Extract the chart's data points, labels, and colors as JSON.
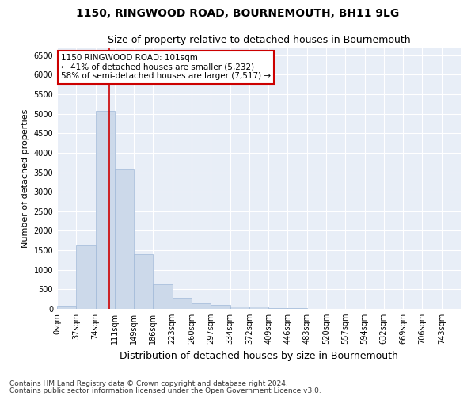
{
  "title": "1150, RINGWOOD ROAD, BOURNEMOUTH, BH11 9LG",
  "subtitle": "Size of property relative to detached houses in Bournemouth",
  "xlabel": "Distribution of detached houses by size in Bournemouth",
  "ylabel": "Number of detached properties",
  "bar_color": "#ccd9ea",
  "bar_edge_color": "#a0b8d8",
  "bin_labels": [
    "0sqm",
    "37sqm",
    "74sqm",
    "111sqm",
    "149sqm",
    "186sqm",
    "223sqm",
    "260sqm",
    "297sqm",
    "334sqm",
    "372sqm",
    "409sqm",
    "446sqm",
    "483sqm",
    "520sqm",
    "557sqm",
    "594sqm",
    "632sqm",
    "669sqm",
    "706sqm",
    "743sqm"
  ],
  "bar_values": [
    75,
    1650,
    5080,
    3580,
    1400,
    620,
    290,
    140,
    100,
    70,
    55,
    30,
    20,
    10,
    5,
    3,
    2,
    1,
    1,
    0,
    0
  ],
  "ylim": [
    0,
    6700
  ],
  "yticks": [
    0,
    500,
    1000,
    1500,
    2000,
    2500,
    3000,
    3500,
    4000,
    4500,
    5000,
    5500,
    6000,
    6500
  ],
  "vline_x": 2.73,
  "vline_color": "#cc0000",
  "annotation_line1": "1150 RINGWOOD ROAD: 101sqm",
  "annotation_line2": "← 41% of detached houses are smaller (5,232)",
  "annotation_line3": "58% of semi-detached houses are larger (7,517) →",
  "annotation_box_color": "#ffffff",
  "annotation_box_edge": "#cc0000",
  "footer1": "Contains HM Land Registry data © Crown copyright and database right 2024.",
  "footer2": "Contains public sector information licensed under the Open Government Licence v3.0.",
  "background_color": "#e8eef7",
  "grid_color": "#ffffff",
  "fig_bg": "#ffffff",
  "title_fontsize": 10,
  "subtitle_fontsize": 9,
  "xlabel_fontsize": 9,
  "ylabel_fontsize": 8,
  "tick_fontsize": 7,
  "annot_fontsize": 7.5,
  "footer_fontsize": 6.5
}
